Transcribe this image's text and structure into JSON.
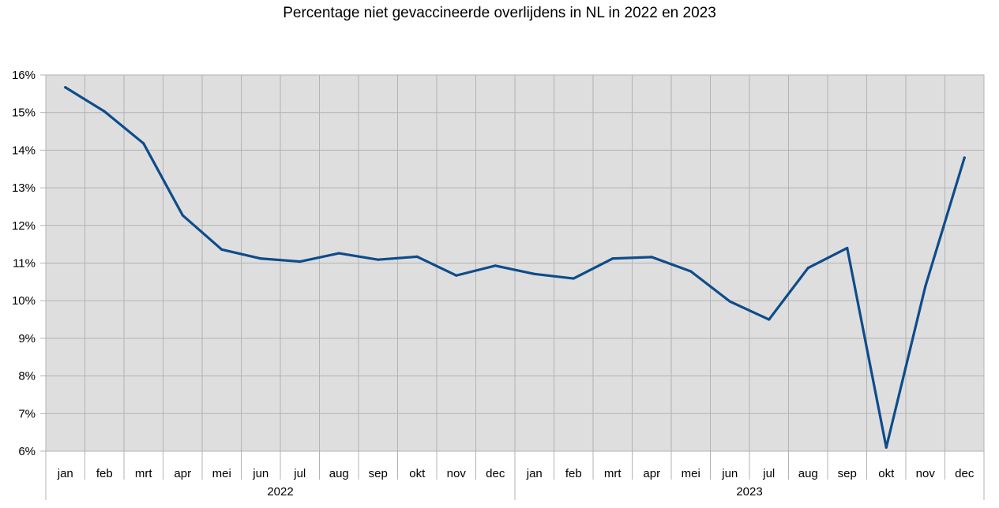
{
  "chart_data": {
    "type": "line",
    "title": "Percentage niet gevaccineerde overlijdens in NL in 2022 en 2023",
    "xlabel": "",
    "ylabel": "",
    "ylim": [
      6,
      16
    ],
    "y_ticks": [
      "6%",
      "7%",
      "8%",
      "9%",
      "10%",
      "11%",
      "12%",
      "13%",
      "14%",
      "15%",
      "16%"
    ],
    "grid": true,
    "legend": "none",
    "colors": {
      "line": "#0e4c8a",
      "plot_bg": "#dedede",
      "grid": "#b3b3b3",
      "axis": "#b3b3b3"
    },
    "groups": [
      {
        "label": "2022",
        "months": [
          "jan",
          "feb",
          "mrt",
          "apr",
          "mei",
          "jun",
          "jul",
          "aug",
          "sep",
          "okt",
          "nov",
          "dec"
        ]
      },
      {
        "label": "2023",
        "months": [
          "jan",
          "feb",
          "mrt",
          "apr",
          "mei",
          "jun",
          "jul",
          "aug",
          "sep",
          "okt",
          "nov",
          "dec"
        ]
      }
    ],
    "series": [
      {
        "values": [
          15.67,
          15.03,
          14.18,
          12.27,
          11.36,
          11.12,
          11.04,
          11.26,
          11.09,
          11.17,
          10.67,
          10.93,
          10.71,
          10.59,
          11.12,
          11.16,
          10.78,
          9.98,
          9.5,
          10.87,
          11.4,
          6.1,
          10.38,
          13.8
        ]
      }
    ]
  }
}
